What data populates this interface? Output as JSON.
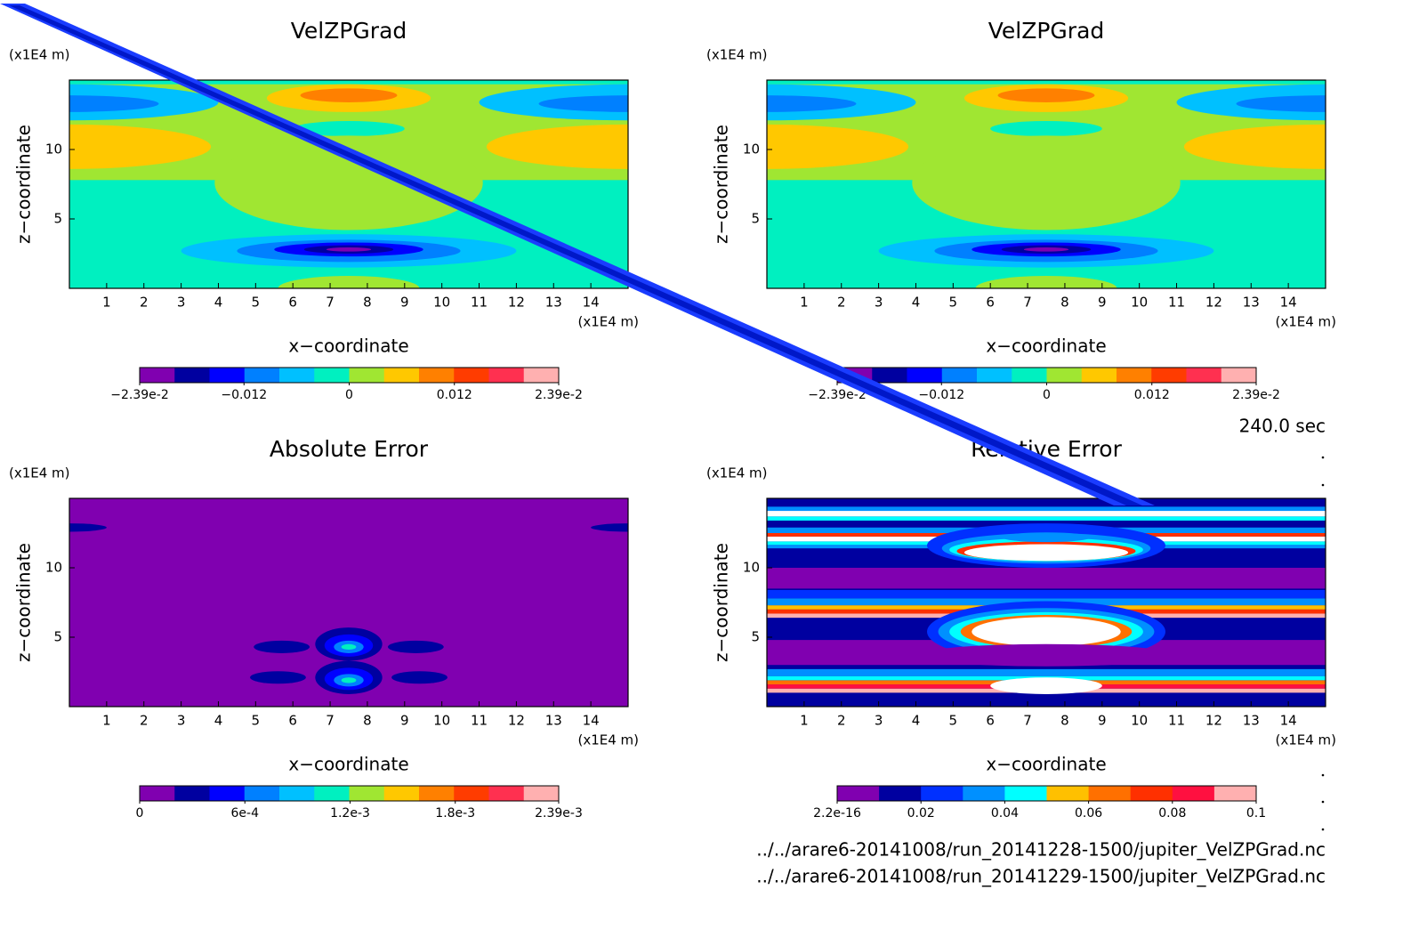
{
  "panels": [
    {
      "title": "VelZPGrad",
      "y_unit": "(x1E4 m)",
      "x_unit": "(x1E4 m)",
      "ylabel": "z−coordinate",
      "xlabel": "x−coordinate",
      "xlim": [
        0,
        15
      ],
      "ylim": [
        0,
        15
      ],
      "xticks": [
        1,
        2,
        3,
        4,
        5,
        6,
        7,
        8,
        9,
        10,
        11,
        12,
        13,
        14
      ],
      "yticks": [
        5,
        10
      ],
      "colorbar": {
        "colors": [
          "#8000b0",
          "#0000a0",
          "#0000ff",
          "#0080ff",
          "#00c0ff",
          "#00f0c0",
          "#a0e632",
          "#ffc800",
          "#ff8000",
          "#ff3c00",
          "#ff3050",
          "#ffb0b0"
        ],
        "labels": [
          {
            "value": -0.0239,
            "label": "−2.39e-2"
          },
          {
            "value": -0.012,
            "label": "−0.012"
          },
          0,
          0.012,
          {
            "value": 0.0239,
            "label": "2.39e-2"
          }
        ]
      }
    },
    {
      "title": "VelZPGrad",
      "y_unit": "(x1E4 m)",
      "x_unit": "(x1E4 m)",
      "ylabel": "z−coordinate",
      "xlabel": "x−coordinate",
      "xlim": [
        0,
        15
      ],
      "ylim": [
        0,
        15
      ],
      "xticks": [
        1,
        2,
        3,
        4,
        5,
        6,
        7,
        8,
        9,
        10,
        11,
        12,
        13,
        14
      ],
      "yticks": [
        5,
        10
      ],
      "colorbar": {
        "colors": [
          "#8000b0",
          "#0000a0",
          "#0000ff",
          "#0080ff",
          "#00c0ff",
          "#00f0c0",
          "#a0e632",
          "#ffc800",
          "#ff8000",
          "#ff3c00",
          "#ff3050",
          "#ffb0b0"
        ],
        "labels": [
          {
            "value": -0.0239,
            "label": "−2.39e-2"
          },
          {
            "value": -0.012,
            "label": "−0.012"
          },
          0,
          0.012,
          {
            "value": 0.0239,
            "label": "2.39e-2"
          }
        ]
      }
    },
    {
      "title": "Absolute Error",
      "y_unit": "(x1E4 m)",
      "x_unit": "(x1E4 m)",
      "ylabel": "z−coordinate",
      "xlabel": "x−coordinate",
      "xlim": [
        0,
        15
      ],
      "ylim": [
        0,
        15
      ],
      "xticks": [
        1,
        2,
        3,
        4,
        5,
        6,
        7,
        8,
        9,
        10,
        11,
        12,
        13,
        14
      ],
      "yticks": [
        5,
        10
      ],
      "colorbar": {
        "colors": [
          "#8000b0",
          "#0000a0",
          "#0000ff",
          "#0080ff",
          "#00c0ff",
          "#00f0c0",
          "#a0e632",
          "#ffc800",
          "#ff8000",
          "#ff3c00",
          "#ff3050",
          "#ffb0b0"
        ],
        "labels": [
          0,
          {
            "value": 0.0006,
            "label": "6e-4"
          },
          {
            "value": 0.0012,
            "label": "1.2e-3"
          },
          {
            "value": 0.0018,
            "label": "1.8e-3"
          },
          {
            "value": 0.00239,
            "label": "2.39e-3"
          }
        ]
      }
    },
    {
      "title": "Relative Error",
      "y_unit": "(x1E4 m)",
      "x_unit": "(x1E4 m)",
      "ylabel": "z−coordinate",
      "xlabel": "x−coordinate",
      "xlim": [
        0,
        15
      ],
      "ylim": [
        0,
        15
      ],
      "xticks": [
        1,
        2,
        3,
        4,
        5,
        6,
        7,
        8,
        9,
        10,
        11,
        12,
        13,
        14
      ],
      "yticks": [
        5,
        10
      ],
      "colorbar": {
        "colors": [
          "#8000b0",
          "#0000a0",
          "#0030ff",
          "#0090ff",
          "#00ffff",
          "#ffc000",
          "#ff7000",
          "#ff3000",
          "#ff1040",
          "#ffb0b0"
        ],
        "labels": [
          {
            "value": 2.2e-16,
            "label": "2.2e-16"
          },
          0.02,
          0.04,
          0.06,
          0.08,
          0.1
        ]
      }
    }
  ],
  "time": "240.0 sec",
  "files": [
    "../../arare6-20141008/run_20141228-1500/jupiter_VelZPGrad.nc",
    "../../arare6-20141008/run_20141229-1500/jupiter_VelZPGrad.nc"
  ]
}
